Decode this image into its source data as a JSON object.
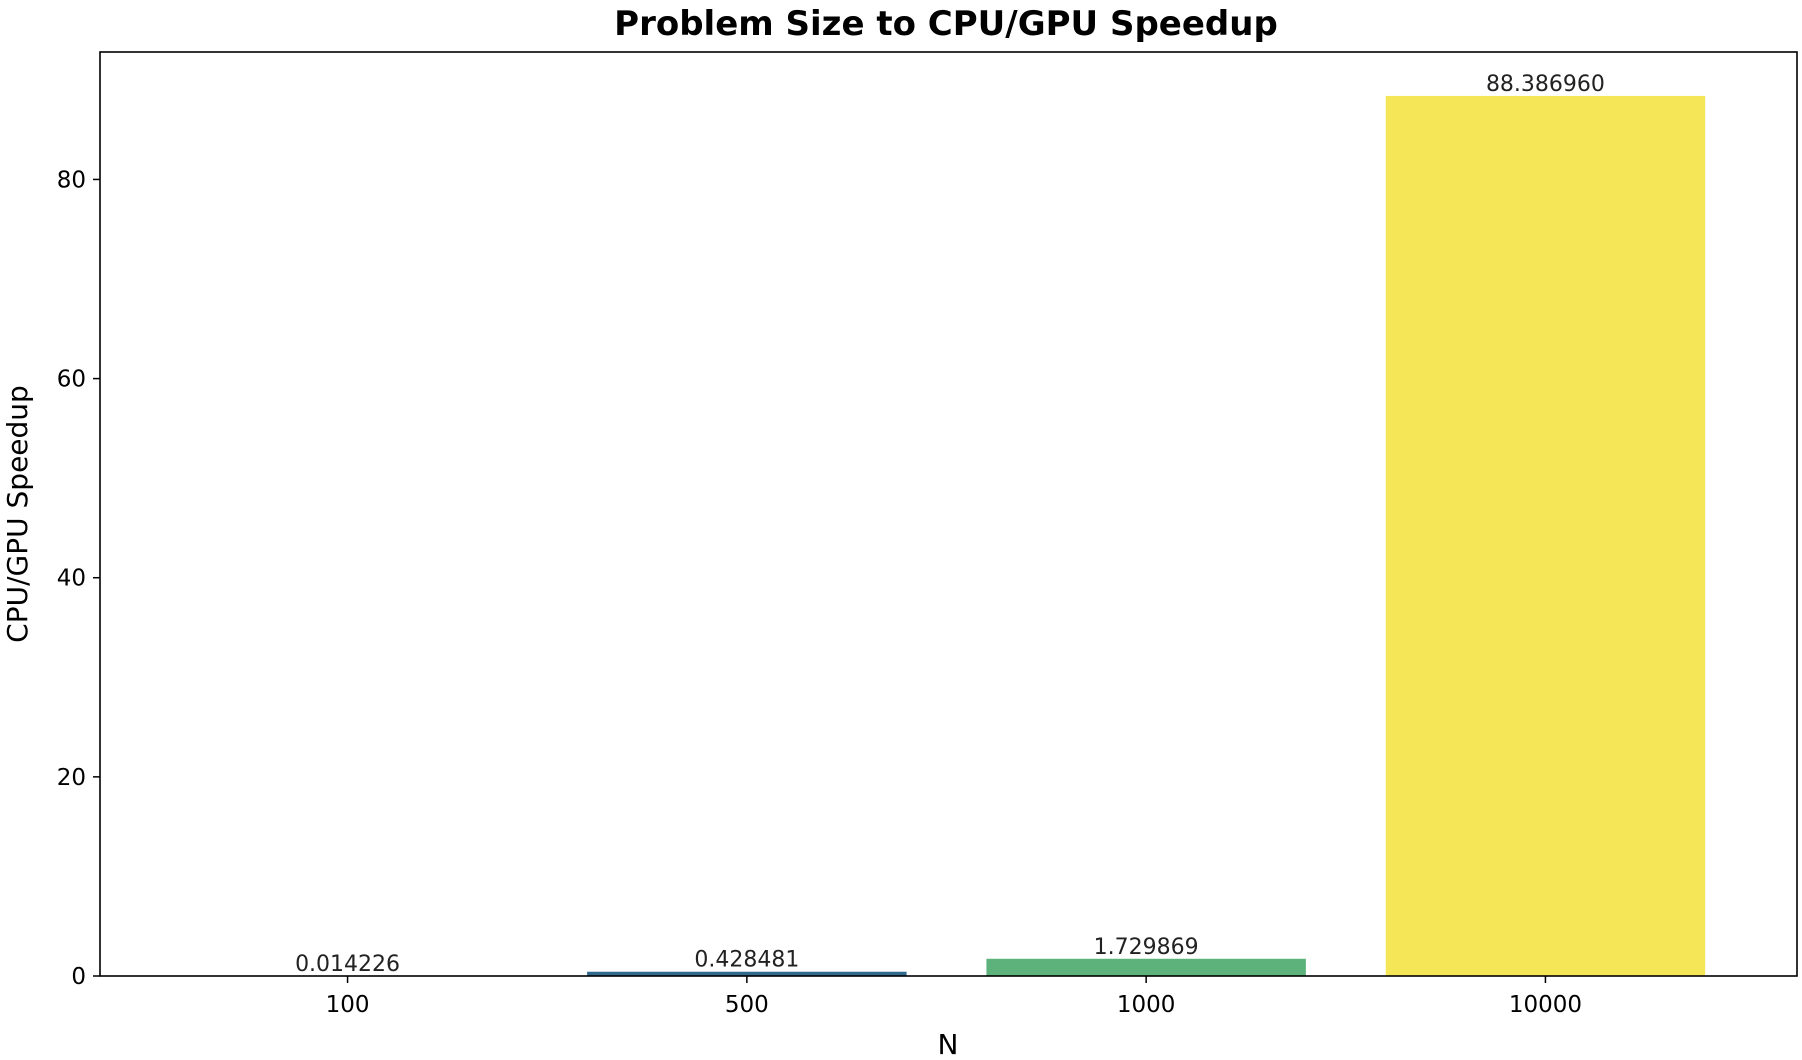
{
  "chart_data": {
    "type": "bar",
    "title": "Problem Size to CPU/GPU Speedup",
    "xlabel": "N",
    "ylabel": "CPU/GPU Speedup",
    "categories": [
      "100",
      "500",
      "1000",
      "10000"
    ],
    "values": [
      0.014226,
      0.428481,
      1.729869,
      88.38696
    ],
    "data_labels": [
      "0.014226",
      "0.428481",
      "1.729869",
      "88.386960"
    ],
    "bar_colors": [
      "#440154",
      "#31688e",
      "#5cb27a",
      "#f5e658"
    ],
    "ylim": [
      0,
      92.8
    ],
    "yticks": [
      0,
      20,
      40,
      60,
      80
    ],
    "ytick_labels": [
      "0",
      "20",
      "40",
      "60",
      "80"
    ],
    "grid": false,
    "legend": "none"
  }
}
